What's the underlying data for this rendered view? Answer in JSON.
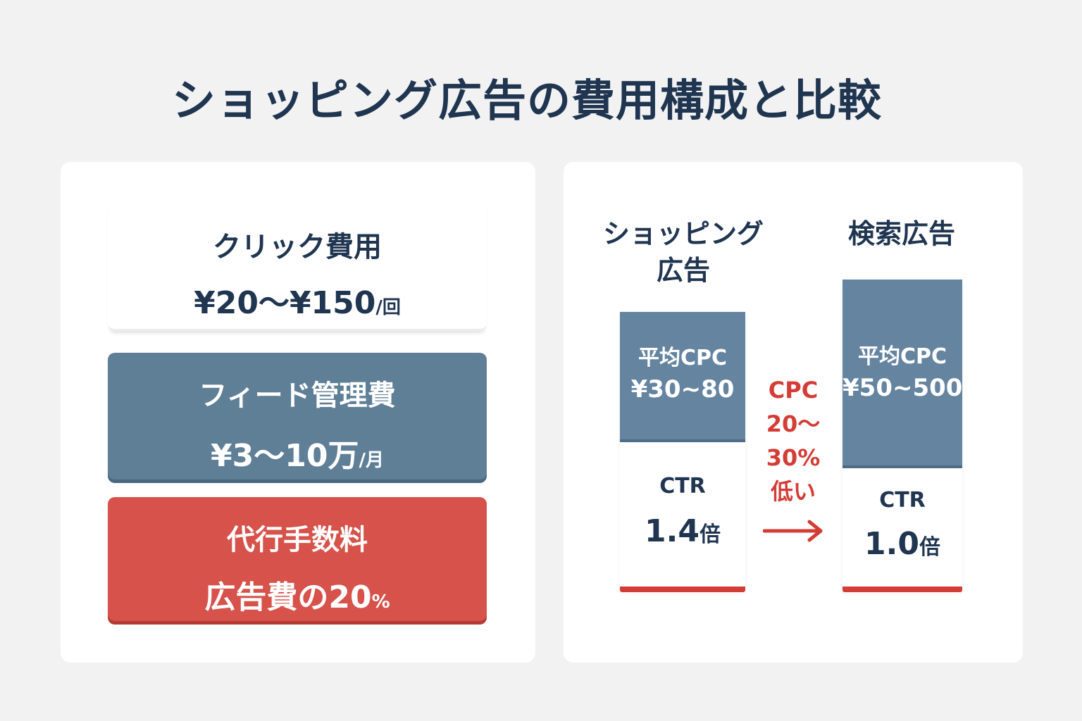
{
  "title": "ショッピング広告の費用構成と比較",
  "costs": {
    "click": {
      "label": "クリック費用",
      "value": "¥20〜¥150",
      "unit": "/回"
    },
    "feed": {
      "label": "フィード管理費",
      "value": "¥3〜10万",
      "unit": "/月"
    },
    "agency": {
      "label": "代行手数料",
      "value": "広告費の20",
      "unit": "%"
    }
  },
  "comparison": {
    "shopping": {
      "heading_line1": "ショッピング",
      "heading_line2": "広告",
      "cpc_label": "平均CPC",
      "cpc_value": "¥30~80",
      "ctr_label": "CTR",
      "ctr_value": "1.4",
      "ctr_unit": "倍"
    },
    "search": {
      "heading": "検索広告",
      "cpc_label": "平均CPC",
      "cpc_value": "¥50~500",
      "ctr_label": "CTR",
      "ctr_value": "1.0",
      "ctr_unit": "倍"
    },
    "difference": {
      "line1": "CPC",
      "line2": "20〜",
      "line3": "30%",
      "line4": "低い"
    },
    "arrow_icon": "right-arrow-icon"
  },
  "colors": {
    "background": "#f2f2f2",
    "navy": "#1f3550",
    "slate_blue": "#5f7f97",
    "red": "#d6524a",
    "accent_red": "#d43c36"
  }
}
